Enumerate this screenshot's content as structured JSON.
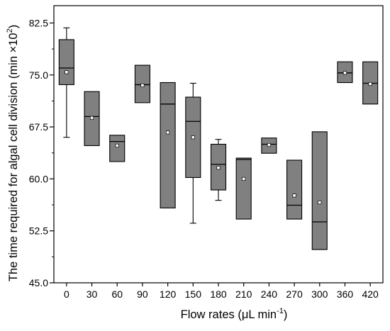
{
  "chart_data": {
    "type": "box",
    "xlabel": "Flow rates (μL min",
    "xlabel_sup": "-1",
    "xlabel_end": ")",
    "ylabel": "The time required for algal cell division (min ×10",
    "ylabel_sup": "2",
    "ylabel_end": ")",
    "ylim": [
      45.0,
      85.0
    ],
    "yticks": [
      "45.0",
      "52.5",
      "60.0",
      "67.5",
      "75.0",
      "82.5"
    ],
    "ytick_values": [
      45.0,
      52.5,
      60.0,
      67.5,
      75.0,
      82.5
    ],
    "categories": [
      "0",
      "30",
      "60",
      "90",
      "120",
      "150",
      "180",
      "210",
      "240",
      "270",
      "300",
      "360",
      "420"
    ],
    "series": [
      {
        "boxes": [
          {
            "q1": 73.6,
            "median": 76.0,
            "q3": 80.1,
            "mean": 75.4,
            "whisker_low": 66.0,
            "whisker_high": 81.8
          },
          {
            "q1": 64.8,
            "median": 69.0,
            "q3": 72.6,
            "mean": 68.8,
            "whisker_low": 64.8,
            "whisker_high": 72.6
          },
          {
            "q1": 62.5,
            "median": 65.4,
            "q3": 66.3,
            "mean": 64.8,
            "whisker_low": 62.5,
            "whisker_high": 66.3
          },
          {
            "q1": 71.0,
            "median": 73.6,
            "q3": 76.4,
            "mean": 73.5,
            "whisker_low": 71.0,
            "whisker_high": 76.4
          },
          {
            "q1": 55.8,
            "median": 70.8,
            "q3": 73.9,
            "mean": 66.7,
            "whisker_low": 55.8,
            "whisker_high": 73.9
          },
          {
            "q1": 60.2,
            "median": 68.3,
            "q3": 71.8,
            "mean": 66.0,
            "whisker_low": 53.6,
            "whisker_high": 73.8
          },
          {
            "q1": 58.4,
            "median": 62.1,
            "q3": 65.0,
            "mean": 61.6,
            "whisker_low": 56.9,
            "whisker_high": 65.7
          },
          {
            "q1": 54.2,
            "median": 62.8,
            "q3": 63.0,
            "mean": 60.0,
            "whisker_low": 54.2,
            "whisker_high": 63.0
          },
          {
            "q1": 63.7,
            "median": 65.0,
            "q3": 65.9,
            "mean": 64.9,
            "whisker_low": 63.7,
            "whisker_high": 65.9
          },
          {
            "q1": 54.2,
            "median": 56.2,
            "q3": 62.7,
            "mean": 57.6,
            "whisker_low": 54.2,
            "whisker_high": 62.7
          },
          {
            "q1": 49.8,
            "median": 53.8,
            "q3": 66.8,
            "mean": 56.6,
            "whisker_low": 49.8,
            "whisker_high": 66.8
          },
          {
            "q1": 73.9,
            "median": 75.3,
            "q3": 76.9,
            "mean": 75.3,
            "whisker_low": 73.9,
            "whisker_high": 76.9
          },
          {
            "q1": 70.8,
            "median": 73.8,
            "q3": 76.9,
            "mean": 73.7,
            "whisker_low": 70.8,
            "whisker_high": 76.9
          }
        ]
      }
    ],
    "box_color": "#808080",
    "mean_marker_color": "#ffffff",
    "grid": false,
    "legend": "none"
  }
}
